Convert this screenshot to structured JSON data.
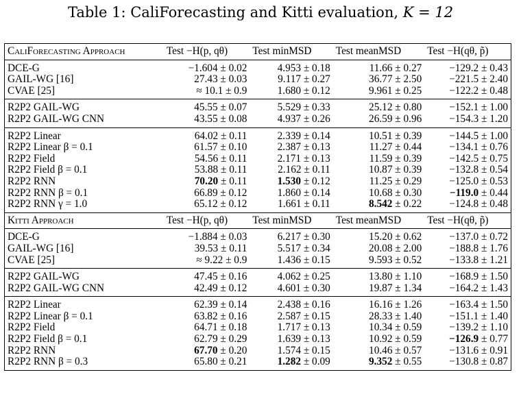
{
  "caption": {
    "prefix": "Table 1: CaliForecasting and Kitti evaluation, ",
    "math": "K = 12"
  },
  "columns": [
    "Test −H(p, qθ)",
    "Test minMSD",
    "Test meanMSD",
    "Test −H(qθ, p̃)"
  ],
  "sections": [
    {
      "title": "CaliForecasting Approach",
      "groups": [
        [
          {
            "name": "DCE-G",
            "cells": [
              "−1.604 ± 0.02",
              "4.953 ± 0.18",
              "11.66 ± 0.27",
              "−129.2 ± 0.43"
            ]
          },
          {
            "name": "GAIL-WG [16]",
            "cells": [
              "27.43 ± 0.03",
              "9.117 ± 0.27",
              "36.77 ± 2.50",
              "−221.5 ± 2.40"
            ]
          },
          {
            "name": "CVAE [25]",
            "cells": [
              "≈ 10.1 ± 0.9",
              "1.680 ± 0.12",
              "9.961 ± 0.25",
              "−122.2 ± 0.48"
            ]
          }
        ],
        [
          {
            "name": "R2P2 GAIL-WG",
            "cells": [
              "45.55 ± 0.07",
              "5.529 ± 0.33",
              "25.12 ± 0.80",
              "−152.1 ± 1.00"
            ]
          },
          {
            "name": "R2P2 GAIL-WG CNN",
            "cells": [
              "43.55 ± 0.08",
              "4.937 ± 0.26",
              "26.59 ± 0.96",
              "−154.3 ± 1.20"
            ]
          }
        ],
        [
          {
            "name": "R2P2 Linear",
            "cells": [
              "64.02 ± 0.11",
              "2.339 ± 0.14",
              "10.51 ± 0.39",
              "−144.5 ± 1.00"
            ]
          },
          {
            "name": "R2P2 Linear β = 0.1",
            "cells": [
              "61.57 ± 0.10",
              "2.387 ± 0.13",
              "11.27 ± 0.44",
              "−134.1 ± 0.76"
            ]
          },
          {
            "name": "R2P2 Field",
            "cells": [
              "54.56 ± 0.11",
              "2.171 ± 0.13",
              "11.59 ± 0.39",
              "−142.5 ± 0.75"
            ]
          },
          {
            "name": "R2P2 Field β = 0.1",
            "cells": [
              "53.88 ± 0.11",
              "2.162 ± 0.11",
              "10.87 ± 0.39",
              "−132.8 ± 0.54"
            ]
          },
          {
            "name": "R2P2 RNN",
            "cells": [
              "70.20 ± 0.11",
              "1.530 ± 0.12",
              "11.25 ± 0.29",
              "−125.0 ± 0.53"
            ],
            "bold": [
              0,
              1
            ]
          },
          {
            "name": "R2P2 RNN β = 0.1",
            "cells": [
              "66.89 ± 0.12",
              "1.860 ± 0.14",
              "10.68 ± 0.30",
              "−119.0 ± 0.44"
            ],
            "bold": [
              3
            ]
          },
          {
            "name": "R2P2 RNN γ = 1.0",
            "cells": [
              "65.12 ± 0.12",
              "1.661 ± 0.11",
              "8.542 ± 0.22",
              "−124.8 ± 0.48"
            ],
            "bold": [
              2
            ]
          }
        ]
      ]
    },
    {
      "title": "Kitti Approach",
      "groups": [
        [
          {
            "name": "DCE-G",
            "cells": [
              "−1.884 ± 0.03",
              "6.217 ± 0.30",
              "15.20 ± 0.62",
              "−137.0 ± 0.72"
            ]
          },
          {
            "name": "GAIL-WG [16]",
            "cells": [
              "39.53 ± 0.11",
              "5.517 ± 0.34",
              "20.08 ± 2.00",
              "−188.8 ± 1.76"
            ]
          },
          {
            "name": "CVAE [25]",
            "cells": [
              "≈ 9.22 ± 0.9",
              "1.436 ± 0.15",
              "9.593 ± 0.52",
              "−133.8 ± 1.21"
            ]
          }
        ],
        [
          {
            "name": "R2P2 GAIL-WG",
            "cells": [
              "47.45 ± 0.16",
              "4.062 ± 0.25",
              "13.80 ± 1.10",
              "−168.9 ± 1.50"
            ]
          },
          {
            "name": "R2P2 GAIL-WG CNN",
            "cells": [
              "42.49 ± 0.12",
              "4.601 ± 0.30",
              "19.87 ± 1.34",
              "−164.2 ± 1.43"
            ]
          }
        ],
        [
          {
            "name": "R2P2 Linear",
            "cells": [
              "62.39 ± 0.14",
              "2.438 ± 0.16",
              "16.16 ± 1.26",
              "−163.4 ± 1.50"
            ]
          },
          {
            "name": "R2P2 Linear β = 0.1",
            "cells": [
              "63.82 ± 0.16",
              "2.587 ± 0.15",
              "28.33 ± 1.40",
              "−151.1 ± 1.40"
            ]
          },
          {
            "name": "R2P2 Field",
            "cells": [
              "64.71 ± 0.18",
              "1.717 ± 0.13",
              "10.34 ± 0.59",
              "−139.2 ± 1.10"
            ]
          },
          {
            "name": "R2P2 Field β = 0.1",
            "cells": [
              "62.79 ± 0.29",
              "1.639 ± 0.13",
              "10.92 ± 0.59",
              "−126.9 ± 0.77"
            ],
            "bold": [
              3
            ]
          },
          {
            "name": "R2P2 RNN",
            "cells": [
              "67.70 ± 0.20",
              "1.574 ± 0.15",
              "10.46 ± 0.57",
              "−131.6 ± 0.91"
            ],
            "bold": [
              0
            ]
          },
          {
            "name": "R2P2 RNN β = 0.3",
            "cells": [
              "65.80 ± 0.21",
              "1.282 ± 0.09",
              "9.352 ± 0.55",
              "−130.8 ± 0.87"
            ],
            "bold": [
              1,
              2
            ]
          }
        ]
      ]
    }
  ]
}
